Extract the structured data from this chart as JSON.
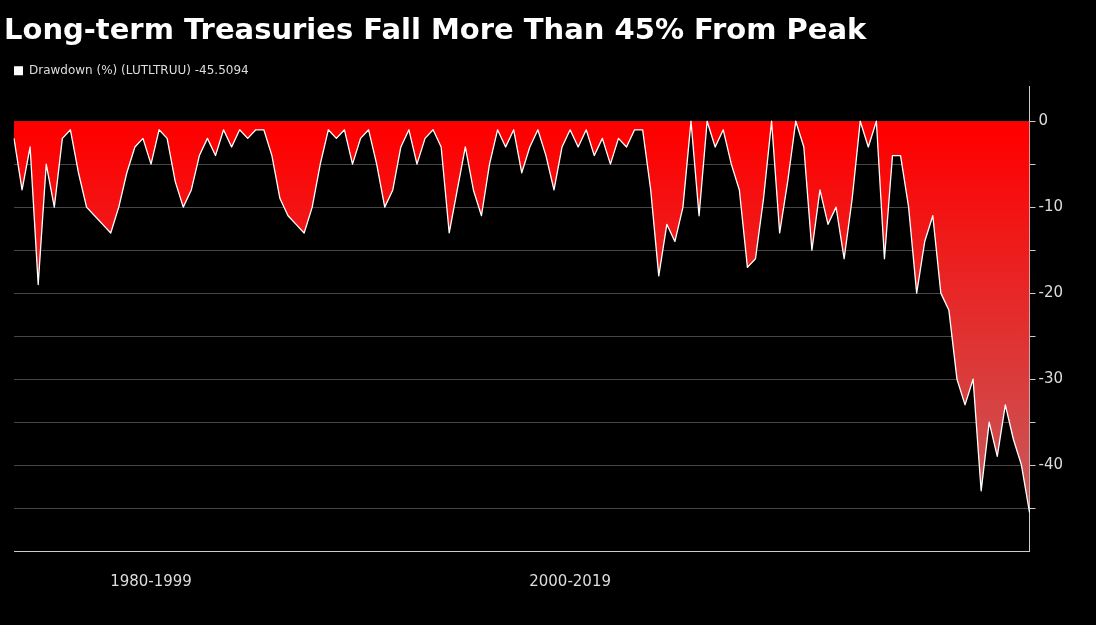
{
  "chart_data": {
    "type": "area",
    "title": "Long-term Treasuries Fall More Than 45% From Peak",
    "categories": [
      null,
      null,
      null,
      null,
      null,
      null,
      null,
      null,
      null,
      null,
      null,
      null,
      null,
      null,
      null,
      null,
      null,
      "1980-1999",
      null,
      null,
      null,
      null,
      null,
      null,
      null,
      null,
      null,
      null,
      null,
      null,
      null,
      null,
      null,
      null,
      null,
      null,
      null,
      null,
      null,
      null,
      null,
      null,
      null,
      null,
      null,
      null,
      null,
      null,
      null,
      null,
      null,
      null,
      null,
      null,
      null,
      null,
      null,
      null,
      null,
      null,
      null,
      null,
      null,
      null,
      null,
      null,
      null,
      null,
      null,
      "2000-2019",
      null,
      null,
      null,
      null,
      null,
      null,
      null,
      null,
      null,
      null,
      null,
      null,
      null,
      null,
      null,
      null,
      null,
      null,
      null,
      null,
      null,
      null,
      null,
      null,
      null,
      null,
      null,
      null,
      null,
      null,
      null,
      null,
      null,
      null,
      null,
      null,
      null,
      null,
      null,
      null,
      null,
      null,
      null,
      null,
      null,
      null,
      null,
      null,
      null,
      null,
      null,
      null,
      null,
      null,
      null,
      null,
      null
    ],
    "ylim": [
      -50,
      4
    ],
    "yticks": [
      0,
      {
        "value": -5,
        "label": null
      },
      -10,
      {
        "value": -15,
        "label": null
      },
      -20,
      {
        "value": -25,
        "label": null
      },
      -30,
      {
        "value": -35,
        "label": null
      },
      -40,
      {
        "value": -45,
        "label": null
      }
    ],
    "grid": "y",
    "legend": "top left",
    "series": [
      {
        "name": "Drawdown (%) (LUTLTRUU) -45.5094",
        "color": "#ffffff",
        "values": [
          -2,
          -8,
          -3,
          -19,
          -5,
          -10,
          -2,
          -1,
          -6,
          -10,
          -11,
          -12,
          -13,
          -10,
          -6,
          -3,
          -2,
          -5,
          -1,
          -2,
          -7,
          -10,
          -8,
          -4,
          -2,
          -4,
          -1,
          -3,
          -1,
          -2,
          -1,
          -1,
          -4,
          -9,
          -11,
          -12,
          -13,
          -10,
          -5,
          -1,
          -2,
          -1,
          -5,
          -2,
          -1,
          -5,
          -10,
          -8,
          -3,
          -1,
          -5,
          -2,
          -1,
          -3,
          -13,
          -8,
          -3,
          -8,
          -11,
          -5,
          -1,
          -3,
          -1,
          -6,
          -3,
          -1,
          -4,
          -8,
          -3,
          -1,
          -3,
          -1,
          -4,
          -2,
          -5,
          -2,
          -3,
          -1,
          -1,
          -8,
          -18,
          -12,
          -14,
          -10,
          0,
          -11,
          0,
          -3,
          -1,
          -5,
          -8,
          -17,
          -16,
          -9,
          0,
          -13,
          -7,
          0,
          -3,
          -15,
          -8,
          -12,
          -10,
          -16,
          -9,
          0,
          -3,
          0,
          -16,
          -4,
          -4,
          -10,
          -20,
          -14,
          -11,
          -20,
          -22,
          -30,
          -33,
          -30,
          -43,
          -35,
          -39,
          -33,
          -37,
          -40,
          -45.5
        ]
      }
    ]
  }
}
